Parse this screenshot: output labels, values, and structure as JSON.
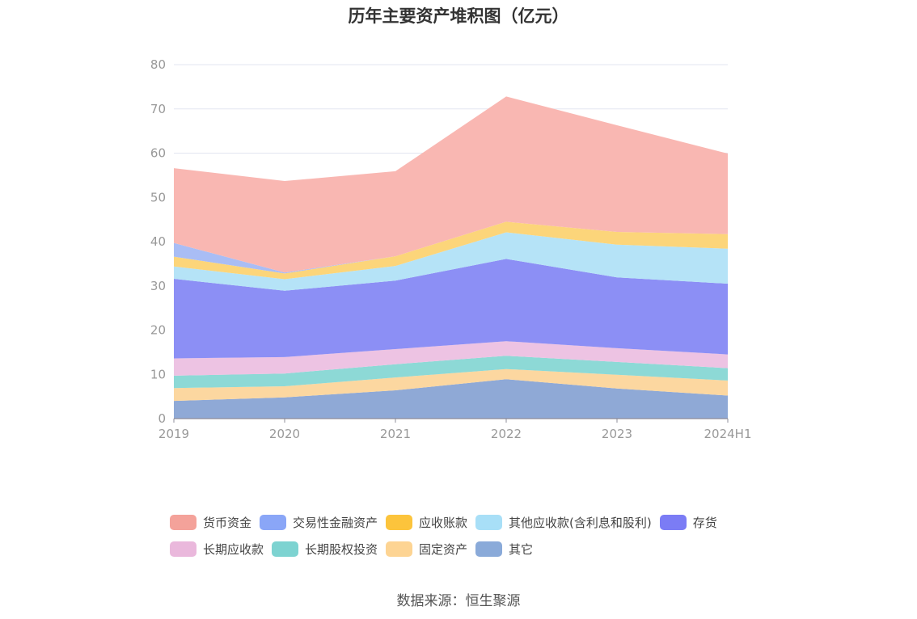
{
  "title": "历年主要资产堆积图（亿元）",
  "source": "数据来源：恒生聚源",
  "chart_data": {
    "type": "area",
    "stacked": true,
    "x": [
      "2019",
      "2020",
      "2021",
      "2022",
      "2023",
      "2024H1"
    ],
    "ylim": [
      0,
      80
    ],
    "yticks": [
      "0",
      "10",
      "20",
      "30",
      "40",
      "50",
      "60",
      "70",
      "80"
    ],
    "grid": true,
    "legend_position": "bottom",
    "series": [
      {
        "name": "其它",
        "color": "#8fa9d6",
        "values": [
          4.0,
          4.8,
          6.4,
          8.9,
          6.8,
          5.2
        ]
      },
      {
        "name": "固定资产",
        "color": "#fcd7a0",
        "values": [
          2.9,
          2.5,
          2.9,
          2.3,
          3.1,
          3.4
        ]
      },
      {
        "name": "长期股权投资",
        "color": "#8dd9d6",
        "values": [
          2.8,
          2.9,
          3.0,
          3.0,
          2.9,
          2.8
        ]
      },
      {
        "name": "长期应收款",
        "color": "#edc3e3",
        "values": [
          3.9,
          3.7,
          3.4,
          3.3,
          3.1,
          3.1
        ]
      },
      {
        "name": "存货",
        "color": "#8c8ff5",
        "values": [
          18.0,
          15.0,
          15.5,
          18.6,
          16.0,
          16.0
        ]
      },
      {
        "name": "其他应收款(含利息和股利)",
        "color": "#b5e3f7",
        "values": [
          2.8,
          2.6,
          3.3,
          6.0,
          7.4,
          7.9
        ]
      },
      {
        "name": "应收账款",
        "color": "#fcd57a",
        "values": [
          2.2,
          1.3,
          2.2,
          2.4,
          2.9,
          3.3
        ]
      },
      {
        "name": "交易性金融资产",
        "color": "#a9bdf5",
        "values": [
          3.1,
          0.2,
          0.0,
          0.0,
          0.0,
          0.0
        ]
      },
      {
        "name": "货币资金",
        "color": "#f9b7b2",
        "values": [
          16.9,
          20.7,
          19.2,
          28.3,
          24.1,
          18.2
        ]
      }
    ]
  },
  "legend": {
    "rows": [
      [
        {
          "label": "货币资金",
          "color": "#f4a29a"
        },
        {
          "label": "交易性金融资产",
          "color": "#8aa6f7"
        },
        {
          "label": "应收账款",
          "color": "#fcc43c"
        },
        {
          "label": "其他应收款(含利息和股利)",
          "color": "#a8dff7"
        },
        {
          "label": "存货",
          "color": "#7b7cf5"
        }
      ],
      [
        {
          "label": "长期应收款",
          "color": "#eab8dc"
        },
        {
          "label": "长期股权投资",
          "color": "#7dd3d1"
        },
        {
          "label": "固定资产",
          "color": "#fdd493"
        },
        {
          "label": "其它",
          "color": "#8aaad9"
        }
      ]
    ]
  }
}
